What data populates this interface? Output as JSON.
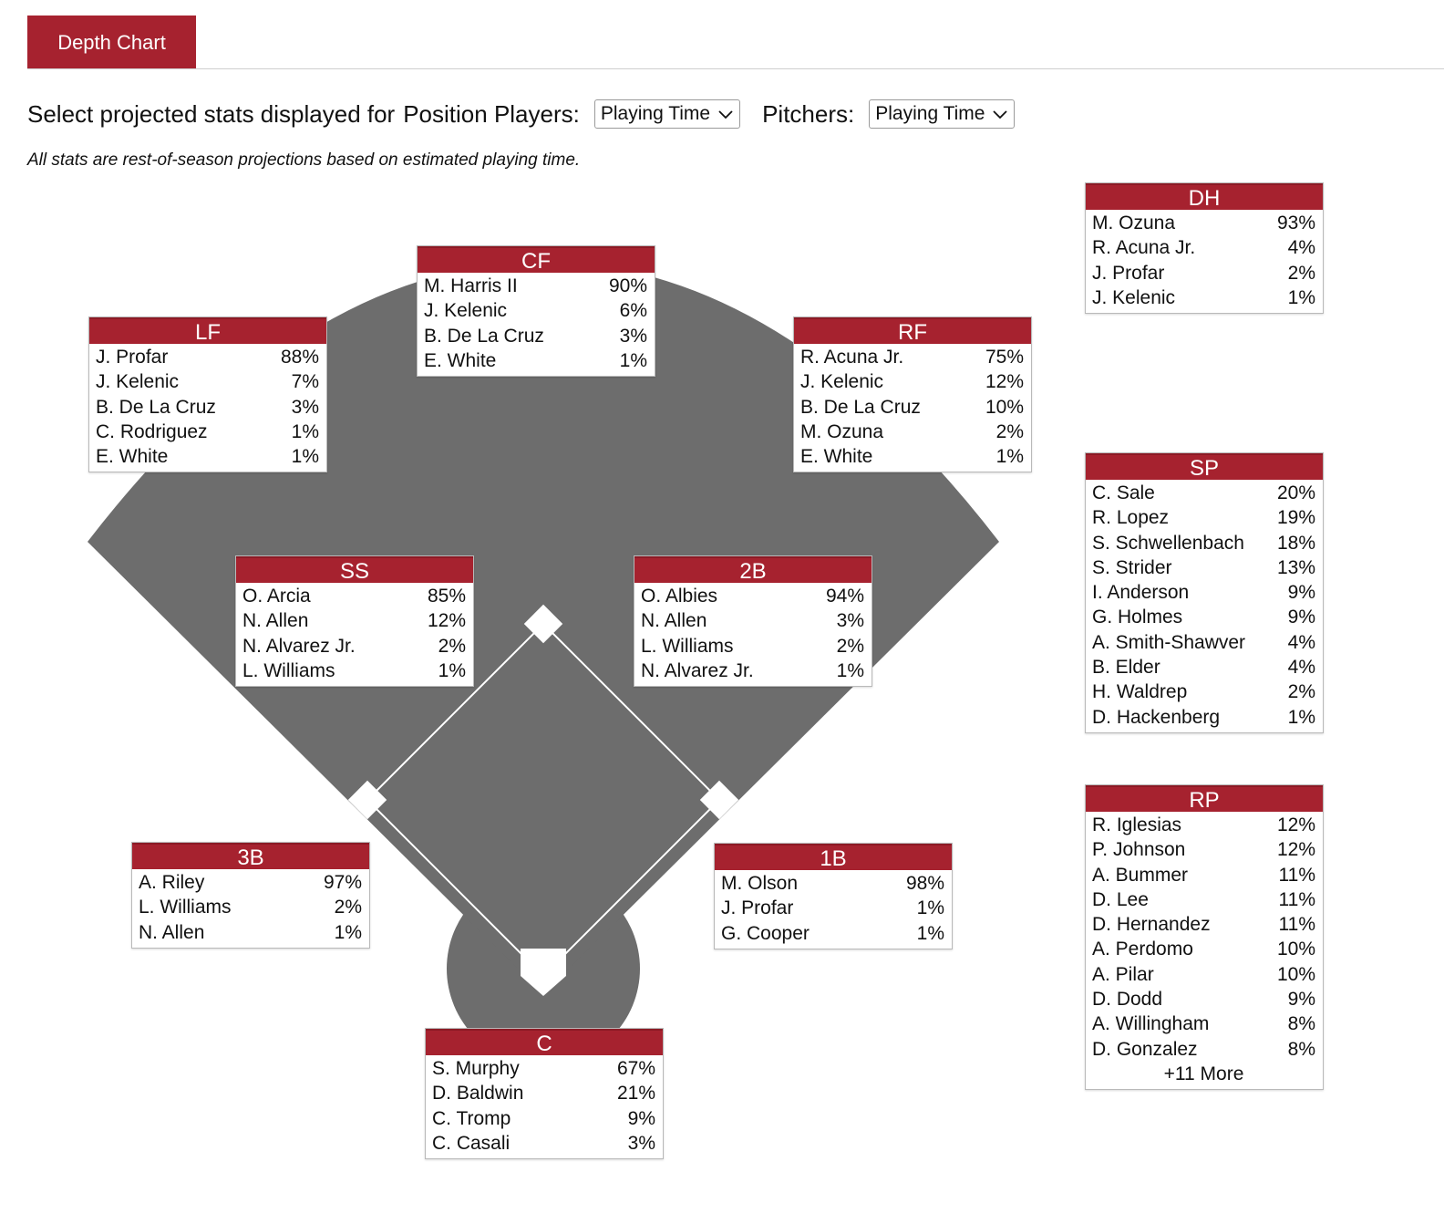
{
  "tab": {
    "label": "Depth Chart"
  },
  "controls": {
    "prefix": "Select projected stats displayed for",
    "position_players_label": "Position Players:",
    "position_players_value": "Playing Time",
    "pitchers_label": "Pitchers:",
    "pitchers_value": "Playing Time"
  },
  "note": "All stats are rest-of-season projections based on estimated playing time.",
  "colors": {
    "accent": "#a6222f",
    "field": "#6d6d6d",
    "border": "#b9b9b9"
  },
  "positions": {
    "cf": {
      "title": "CF",
      "players": [
        {
          "name": "M. Harris II",
          "pct": "90%"
        },
        {
          "name": "J. Kelenic",
          "pct": "6%"
        },
        {
          "name": "B. De La Cruz",
          "pct": "3%"
        },
        {
          "name": "E. White",
          "pct": "1%"
        }
      ]
    },
    "lf": {
      "title": "LF",
      "players": [
        {
          "name": "J. Profar",
          "pct": "88%"
        },
        {
          "name": "J. Kelenic",
          "pct": "7%"
        },
        {
          "name": "B. De La Cruz",
          "pct": "3%"
        },
        {
          "name": "C. Rodriguez",
          "pct": "1%"
        },
        {
          "name": "E. White",
          "pct": "1%"
        }
      ]
    },
    "rf": {
      "title": "RF",
      "players": [
        {
          "name": "R. Acuna Jr.",
          "pct": "75%"
        },
        {
          "name": "J. Kelenic",
          "pct": "12%"
        },
        {
          "name": "B. De La Cruz",
          "pct": "10%"
        },
        {
          "name": "M. Ozuna",
          "pct": "2%"
        },
        {
          "name": "E. White",
          "pct": "1%"
        }
      ]
    },
    "ss": {
      "title": "SS",
      "players": [
        {
          "name": "O. Arcia",
          "pct": "85%"
        },
        {
          "name": "N. Allen",
          "pct": "12%"
        },
        {
          "name": "N. Alvarez Jr.",
          "pct": "2%"
        },
        {
          "name": "L. Williams",
          "pct": "1%"
        }
      ]
    },
    "2b": {
      "title": "2B",
      "players": [
        {
          "name": "O. Albies",
          "pct": "94%"
        },
        {
          "name": "N. Allen",
          "pct": "3%"
        },
        {
          "name": "L. Williams",
          "pct": "2%"
        },
        {
          "name": "N. Alvarez Jr.",
          "pct": "1%"
        }
      ]
    },
    "3b": {
      "title": "3B",
      "players": [
        {
          "name": "A. Riley",
          "pct": "97%"
        },
        {
          "name": "L. Williams",
          "pct": "2%"
        },
        {
          "name": "N. Allen",
          "pct": "1%"
        }
      ]
    },
    "1b": {
      "title": "1B",
      "players": [
        {
          "name": "M. Olson",
          "pct": "98%"
        },
        {
          "name": "J. Profar",
          "pct": "1%"
        },
        {
          "name": "G. Cooper",
          "pct": "1%"
        }
      ]
    },
    "c": {
      "title": "C",
      "players": [
        {
          "name": "S. Murphy",
          "pct": "67%"
        },
        {
          "name": "D. Baldwin",
          "pct": "21%"
        },
        {
          "name": "C. Tromp",
          "pct": "9%"
        },
        {
          "name": "C. Casali",
          "pct": "3%"
        }
      ]
    },
    "dh": {
      "title": "DH",
      "players": [
        {
          "name": "M. Ozuna",
          "pct": "93%"
        },
        {
          "name": "R. Acuna Jr.",
          "pct": "4%"
        },
        {
          "name": "J. Profar",
          "pct": "2%"
        },
        {
          "name": "J. Kelenic",
          "pct": "1%"
        }
      ]
    },
    "sp": {
      "title": "SP",
      "players": [
        {
          "name": "C. Sale",
          "pct": "20%"
        },
        {
          "name": "R. Lopez",
          "pct": "19%"
        },
        {
          "name": "S. Schwellenbach",
          "pct": "18%"
        },
        {
          "name": "S. Strider",
          "pct": "13%"
        },
        {
          "name": "I. Anderson",
          "pct": "9%"
        },
        {
          "name": "G. Holmes",
          "pct": "9%"
        },
        {
          "name": "A. Smith-Shawver",
          "pct": "4%"
        },
        {
          "name": "B. Elder",
          "pct": "4%"
        },
        {
          "name": "H. Waldrep",
          "pct": "2%"
        },
        {
          "name": "D. Hackenberg",
          "pct": "1%"
        }
      ]
    },
    "rp": {
      "title": "RP",
      "more": "+11 More",
      "players": [
        {
          "name": "R. Iglesias",
          "pct": "12%"
        },
        {
          "name": "P. Johnson",
          "pct": "12%"
        },
        {
          "name": "A. Bummer",
          "pct": "11%"
        },
        {
          "name": "D. Lee",
          "pct": "11%"
        },
        {
          "name": "D. Hernandez",
          "pct": "11%"
        },
        {
          "name": "A. Perdomo",
          "pct": "10%"
        },
        {
          "name": "A. Pilar",
          "pct": "10%"
        },
        {
          "name": "D. Dodd",
          "pct": "9%"
        },
        {
          "name": "A. Willingham",
          "pct": "8%"
        },
        {
          "name": "D. Gonzalez",
          "pct": "8%"
        }
      ]
    }
  }
}
